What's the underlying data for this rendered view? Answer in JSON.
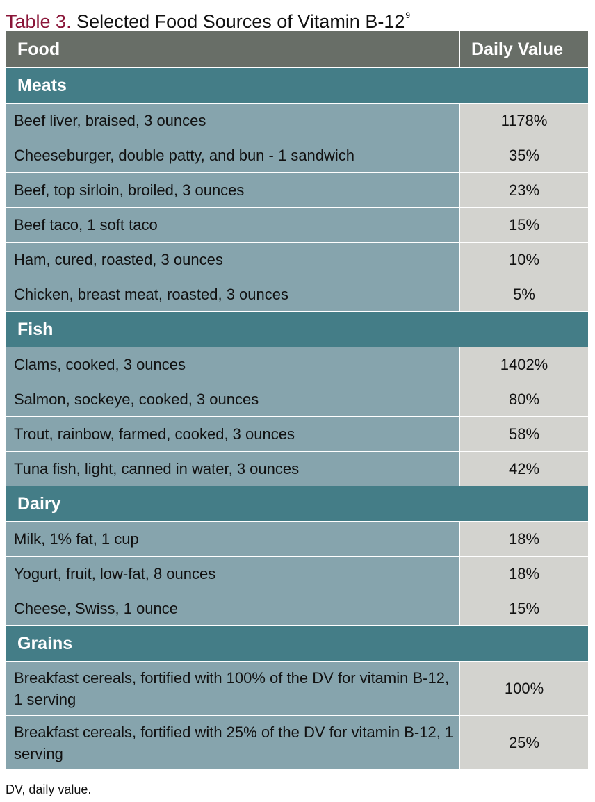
{
  "title": {
    "label": "Table 3.",
    "text": "Selected Food Sources of Vitamin B-12",
    "ref": "9"
  },
  "columns": {
    "food": "Food",
    "daily_value": "Daily Value"
  },
  "sections": [
    {
      "name": "Meats",
      "items": [
        {
          "food": "Beef liver, braised, 3 ounces",
          "value": "1178%"
        },
        {
          "food": "Cheeseburger, double patty, and bun - 1 sandwich",
          "value": "35%"
        },
        {
          "food": "Beef, top sirloin, broiled, 3 ounces",
          "value": "23%"
        },
        {
          "food": "Beef taco, 1 soft taco",
          "value": "15%"
        },
        {
          "food": "Ham, cured, roasted, 3 ounces",
          "value": "10%"
        },
        {
          "food": "Chicken, breast meat, roasted, 3 ounces",
          "value": "5%"
        }
      ]
    },
    {
      "name": "Fish",
      "items": [
        {
          "food": "Clams, cooked, 3 ounces",
          "value": "1402%"
        },
        {
          "food": "Salmon, sockeye, cooked, 3 ounces",
          "value": "80%"
        },
        {
          "food": "Trout, rainbow, farmed, cooked, 3 ounces",
          "value": "58%"
        },
        {
          "food": "Tuna fish, light, canned in water, 3 ounces",
          "value": "42%"
        }
      ]
    },
    {
      "name": "Dairy",
      "items": [
        {
          "food": "Milk, 1% fat, 1 cup",
          "value": "18%"
        },
        {
          "food": "Yogurt, fruit, low-fat, 8 ounces",
          "value": "18%"
        },
        {
          "food": "Cheese, Swiss, 1 ounce",
          "value": "15%"
        }
      ]
    },
    {
      "name": "Grains",
      "items": [
        {
          "food": "Breakfast cereals, fortified with 100% of the DV for vitamin B-12, 1 serving",
          "value": "100%"
        },
        {
          "food": "Breakfast cereals, fortified with 25% of the DV for vitamin B-12, 1 serving",
          "value": "25%"
        }
      ]
    }
  ],
  "footnote": "DV, daily value."
}
